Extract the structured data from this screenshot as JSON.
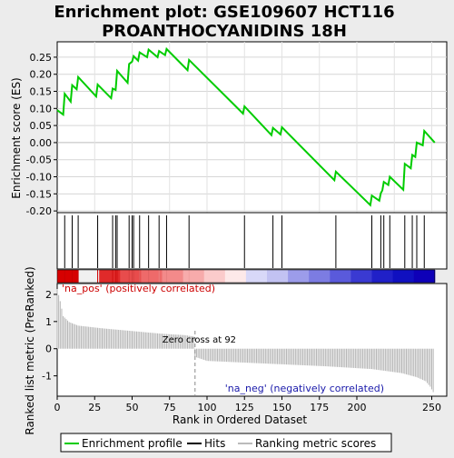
{
  "title_line1": "Enrichment plot: GSE109607 HCT116",
  "title_line2": "PROANTHOCYANIDINS 18H",
  "chart_data": [
    {
      "type": "line",
      "name": "enrichment-profile",
      "ylabel": "Enrichment score (ES)",
      "xlim": [
        0,
        260
      ],
      "ylim": [
        -0.205,
        0.295
      ],
      "yticks": [
        -0.2,
        -0.15,
        -0.1,
        -0.05,
        0.0,
        0.05,
        0.1,
        0.15,
        0.2,
        0.25
      ],
      "ytick_labels": [
        "-0.20",
        "-0.15",
        "-0.10",
        "-0.05",
        "0.00",
        "0.05",
        "0.10",
        "0.15",
        "0.20",
        "0.25"
      ],
      "grid": true,
      "line_color": "#00cc00",
      "points": [
        [
          0,
          0.095
        ],
        [
          4,
          0.082
        ],
        [
          5,
          0.143
        ],
        [
          9,
          0.12
        ],
        [
          10,
          0.168
        ],
        [
          13,
          0.156
        ],
        [
          14,
          0.192
        ],
        [
          26,
          0.135
        ],
        [
          27,
          0.17
        ],
        [
          36,
          0.13
        ],
        [
          37,
          0.158
        ],
        [
          39,
          0.154
        ],
        [
          40,
          0.21
        ],
        [
          47,
          0.175
        ],
        [
          48,
          0.23
        ],
        [
          50,
          0.237
        ],
        [
          51,
          0.253
        ],
        [
          54,
          0.24
        ],
        [
          55,
          0.264
        ],
        [
          60,
          0.25
        ],
        [
          61,
          0.272
        ],
        [
          67,
          0.25
        ],
        [
          68,
          0.268
        ],
        [
          72,
          0.256
        ],
        [
          73,
          0.274
        ],
        [
          87,
          0.212
        ],
        [
          88,
          0.242
        ],
        [
          124,
          0.085
        ],
        [
          125,
          0.106
        ],
        [
          143,
          0.022
        ],
        [
          144,
          0.043
        ],
        [
          149,
          0.024
        ],
        [
          150,
          0.045
        ],
        [
          185,
          -0.11
        ],
        [
          186,
          -0.085
        ],
        [
          209,
          -0.183
        ],
        [
          210,
          -0.155
        ],
        [
          215,
          -0.17
        ],
        [
          216,
          -0.148
        ],
        [
          217,
          -0.14
        ],
        [
          218,
          -0.115
        ],
        [
          221,
          -0.124
        ],
        [
          222,
          -0.1
        ],
        [
          231,
          -0.138
        ],
        [
          232,
          -0.062
        ],
        [
          236,
          -0.075
        ],
        [
          237,
          -0.036
        ],
        [
          239,
          -0.042
        ],
        [
          240,
          0.0
        ],
        [
          244,
          -0.008
        ],
        [
          245,
          0.034
        ],
        [
          252,
          0.0
        ]
      ]
    },
    {
      "type": "bar",
      "name": "hits",
      "x": [
        5,
        10,
        14,
        27,
        37,
        39,
        40,
        48,
        50,
        51,
        55,
        61,
        68,
        73,
        88,
        125,
        144,
        150,
        186,
        210,
        216,
        218,
        222,
        232,
        237,
        240,
        245
      ],
      "colors": [
        "#d60000",
        "#f0f0f0",
        "#e02a2a",
        "#e84c4c",
        "#ee6a6a",
        "#f38a8a",
        "#f7abab",
        "#fbcbcb",
        "#fde9e9",
        "#d8d8f8",
        "#c2c2f2",
        "#9c9cea",
        "#7c7ce2",
        "#5a5adb",
        "#3a3ad2",
        "#2020c8",
        "#1010c0",
        "#0e00b8"
      ]
    },
    {
      "type": "bar",
      "name": "ranking-metric",
      "ylabel": "Ranked list metric (PreRanked)",
      "xlabel": "Rank in Ordered Dataset",
      "xlim": [
        0,
        260
      ],
      "ylim": [
        -1.75,
        2.4
      ],
      "xticks": [
        0,
        25,
        50,
        75,
        100,
        125,
        150,
        175,
        200,
        250
      ],
      "yticks": [
        -1,
        0,
        1,
        2
      ],
      "zero_cross": 92,
      "zero_cross_label": "Zero cross at 92",
      "pos_label": "'na_pos' (positively correlated)",
      "neg_label": "'na_neg' (negatively correlated)",
      "shape": [
        [
          0,
          2.2
        ],
        [
          2,
          1.75
        ],
        [
          4,
          1.2
        ],
        [
          8,
          0.98
        ],
        [
          14,
          0.85
        ],
        [
          30,
          0.75
        ],
        [
          50,
          0.65
        ],
        [
          70,
          0.55
        ],
        [
          85,
          0.5
        ],
        [
          91,
          0.45
        ],
        [
          92,
          -0.3
        ],
        [
          100,
          -0.45
        ],
        [
          140,
          -0.55
        ],
        [
          180,
          -0.65
        ],
        [
          210,
          -0.75
        ],
        [
          230,
          -0.9
        ],
        [
          240,
          -1.05
        ],
        [
          246,
          -1.2
        ],
        [
          249,
          -1.4
        ],
        [
          251,
          -1.6
        ]
      ]
    }
  ],
  "legend": {
    "items": [
      {
        "label": "Enrichment profile",
        "color": "#00cc00"
      },
      {
        "label": "Hits",
        "color": "#000000"
      },
      {
        "label": "Ranking metric scores",
        "color": "#bbbbbb"
      }
    ]
  }
}
